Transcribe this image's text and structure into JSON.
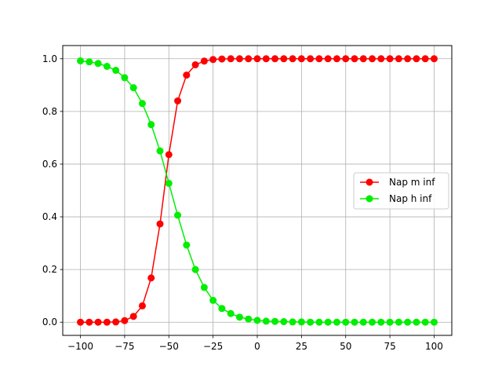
{
  "chart_data": {
    "type": "line",
    "title": "",
    "xlabel": "",
    "ylabel": "",
    "xlim": [
      -110,
      110
    ],
    "ylim": [
      -0.05,
      1.05
    ],
    "xticks": [
      -100,
      -75,
      -50,
      -25,
      0,
      25,
      50,
      75,
      100
    ],
    "xtick_labels": [
      "−100",
      "−75",
      "−50",
      "−25",
      "0",
      "25",
      "50",
      "75",
      "100"
    ],
    "yticks": [
      0.0,
      0.2,
      0.4,
      0.6,
      0.8,
      1.0
    ],
    "ytick_labels": [
      "0.0",
      "0.2",
      "0.4",
      "0.6",
      "0.8",
      "1.0"
    ],
    "grid": true,
    "legend_position": "center-right",
    "x": [
      -100,
      -95,
      -90,
      -85,
      -80,
      -75,
      -70,
      -65,
      -60,
      -55,
      -50,
      -45,
      -40,
      -35,
      -30,
      -25,
      -20,
      -15,
      -10,
      -5,
      0,
      5,
      10,
      15,
      20,
      25,
      30,
      35,
      40,
      45,
      50,
      55,
      60,
      65,
      70,
      75,
      80,
      85,
      90,
      95,
      100
    ],
    "series": [
      {
        "name": "Nap m inf",
        "color": "#ff0000",
        "marker": "circle",
        "values": [
          0.0,
          0.0,
          0.0,
          0.0,
          0.001,
          0.006,
          0.022,
          0.062,
          0.168,
          0.373,
          0.636,
          0.84,
          0.938,
          0.977,
          0.991,
          0.997,
          0.999,
          1.0,
          1.0,
          1.0,
          1.0,
          1.0,
          1.0,
          1.0,
          1.0,
          1.0,
          1.0,
          1.0,
          1.0,
          1.0,
          1.0,
          1.0,
          1.0,
          1.0,
          1.0,
          1.0,
          1.0,
          1.0,
          1.0,
          1.0,
          1.0
        ]
      },
      {
        "name": "Nap h inf",
        "color": "#00ee00",
        "marker": "circle",
        "values": [
          0.992,
          0.988,
          0.982,
          0.971,
          0.956,
          0.928,
          0.89,
          0.83,
          0.75,
          0.65,
          0.527,
          0.406,
          0.293,
          0.2,
          0.132,
          0.083,
          0.052,
          0.033,
          0.019,
          0.012,
          0.007,
          0.004,
          0.003,
          0.002,
          0.001,
          0.001,
          0.0,
          0.0,
          0.0,
          0.0,
          0.0,
          0.0,
          0.0,
          0.0,
          0.0,
          0.0,
          0.0,
          0.0,
          0.0,
          0.0,
          0.0
        ]
      }
    ]
  }
}
